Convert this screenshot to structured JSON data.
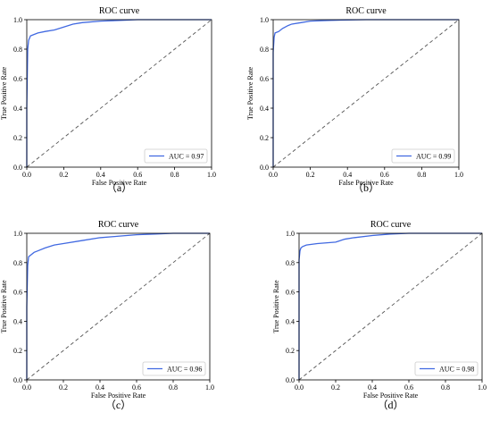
{
  "chart_data": [
    {
      "type": "line",
      "title": "ROC curve",
      "xlabel": "False Positive Rate",
      "ylabel": "True Positive Rate",
      "xlim": [
        0,
        1
      ],
      "ylim": [
        0,
        1
      ],
      "xticks": [
        "0.0",
        "0.2",
        "0.4",
        "0.6",
        "0.8",
        "1.0"
      ],
      "yticks": [
        "0.0",
        "0.2",
        "0.4",
        "0.6",
        "0.8",
        "1.0"
      ],
      "legend_position": "bottom-right",
      "grid": false,
      "caption": "（a）",
      "series": [
        {
          "name": "AUC = 0.97",
          "color": "#4169e1",
          "style": "solid",
          "x": [
            0,
            0,
            0.005,
            0.01,
            0.02,
            0.04,
            0.06,
            0.1,
            0.15,
            0.2,
            0.25,
            0.3,
            0.4,
            0.5,
            0.6,
            0.7,
            0.8,
            0.9,
            1.0
          ],
          "y": [
            0,
            0.4,
            0.8,
            0.86,
            0.89,
            0.9,
            0.91,
            0.92,
            0.93,
            0.95,
            0.97,
            0.98,
            0.99,
            0.995,
            1.0,
            1.0,
            1.0,
            1.0,
            1.0
          ]
        },
        {
          "color": "#555555",
          "style": "dashed",
          "x": [
            0,
            1
          ],
          "y": [
            0,
            1
          ]
        }
      ]
    },
    {
      "type": "line",
      "title": "ROC curve",
      "xlabel": "False Positive Rate",
      "ylabel": "True Positive Rate",
      "xlim": [
        0,
        1
      ],
      "ylim": [
        0,
        1
      ],
      "xticks": [
        "0.0",
        "0.2",
        "0.4",
        "0.6",
        "0.8",
        "1.0"
      ],
      "yticks": [
        "0.0",
        "0.2",
        "0.4",
        "0.6",
        "0.8",
        "1.0"
      ],
      "legend_position": "bottom-right",
      "grid": false,
      "caption": "（b）",
      "series": [
        {
          "name": "AUC = 0.99",
          "color": "#4169e1",
          "style": "solid",
          "x": [
            0,
            0,
            0.005,
            0.01,
            0.03,
            0.05,
            0.08,
            0.1,
            0.15,
            0.2,
            0.3,
            0.4,
            0.5,
            0.6,
            0.8,
            1.0
          ],
          "y": [
            0,
            0.78,
            0.88,
            0.91,
            0.92,
            0.94,
            0.96,
            0.97,
            0.98,
            0.99,
            0.995,
            0.998,
            1.0,
            1.0,
            1.0,
            1.0
          ]
        },
        {
          "color": "#555555",
          "style": "dashed",
          "x": [
            0,
            1
          ],
          "y": [
            0,
            1
          ]
        }
      ]
    },
    {
      "type": "line",
      "title": "ROC curve",
      "xlabel": "False Positive Rate",
      "ylabel": "True Positive Rate",
      "xlim": [
        0,
        1
      ],
      "ylim": [
        0,
        1
      ],
      "xticks": [
        "0.0",
        "0.2",
        "0.4",
        "0.6",
        "0.8",
        "1.0"
      ],
      "yticks": [
        "0.0",
        "0.2",
        "0.4",
        "0.6",
        "0.8",
        "1.0"
      ],
      "legend_position": "bottom-right",
      "grid": false,
      "caption": "（c）",
      "series": [
        {
          "name": "AUC = 0.96",
          "color": "#4169e1",
          "style": "solid",
          "x": [
            0,
            0,
            0.005,
            0.01,
            0.02,
            0.04,
            0.06,
            0.1,
            0.15,
            0.2,
            0.3,
            0.4,
            0.5,
            0.6,
            0.7,
            0.8,
            0.9,
            1.0
          ],
          "y": [
            0,
            0.5,
            0.78,
            0.84,
            0.85,
            0.87,
            0.88,
            0.9,
            0.92,
            0.93,
            0.95,
            0.97,
            0.98,
            0.99,
            0.995,
            1.0,
            1.0,
            1.0
          ]
        },
        {
          "color": "#555555",
          "style": "dashed",
          "x": [
            0,
            1
          ],
          "y": [
            0,
            1
          ]
        }
      ]
    },
    {
      "type": "line",
      "title": "ROC curve",
      "xlabel": "False Positive Rate",
      "ylabel": "True Positive Rate",
      "xlim": [
        0,
        1
      ],
      "ylim": [
        0,
        1
      ],
      "xticks": [
        "0.0",
        "0.2",
        "0.4",
        "0.6",
        "0.8",
        "1.0"
      ],
      "yticks": [
        "0.0",
        "0.2",
        "0.4",
        "0.6",
        "0.8",
        "1.0"
      ],
      "legend_position": "bottom-right",
      "grid": false,
      "caption": "（d）",
      "series": [
        {
          "name": "AUC = 0.98",
          "color": "#4169e1",
          "style": "solid",
          "x": [
            0,
            0,
            0.005,
            0.01,
            0.02,
            0.04,
            0.1,
            0.2,
            0.25,
            0.3,
            0.4,
            0.5,
            0.6,
            0.8,
            1.0
          ],
          "y": [
            0,
            0.82,
            0.88,
            0.9,
            0.91,
            0.92,
            0.93,
            0.94,
            0.96,
            0.97,
            0.985,
            0.995,
            1.0,
            1.0,
            1.0
          ]
        },
        {
          "color": "#555555",
          "style": "dashed",
          "x": [
            0,
            1
          ],
          "y": [
            0,
            1
          ]
        }
      ]
    }
  ]
}
